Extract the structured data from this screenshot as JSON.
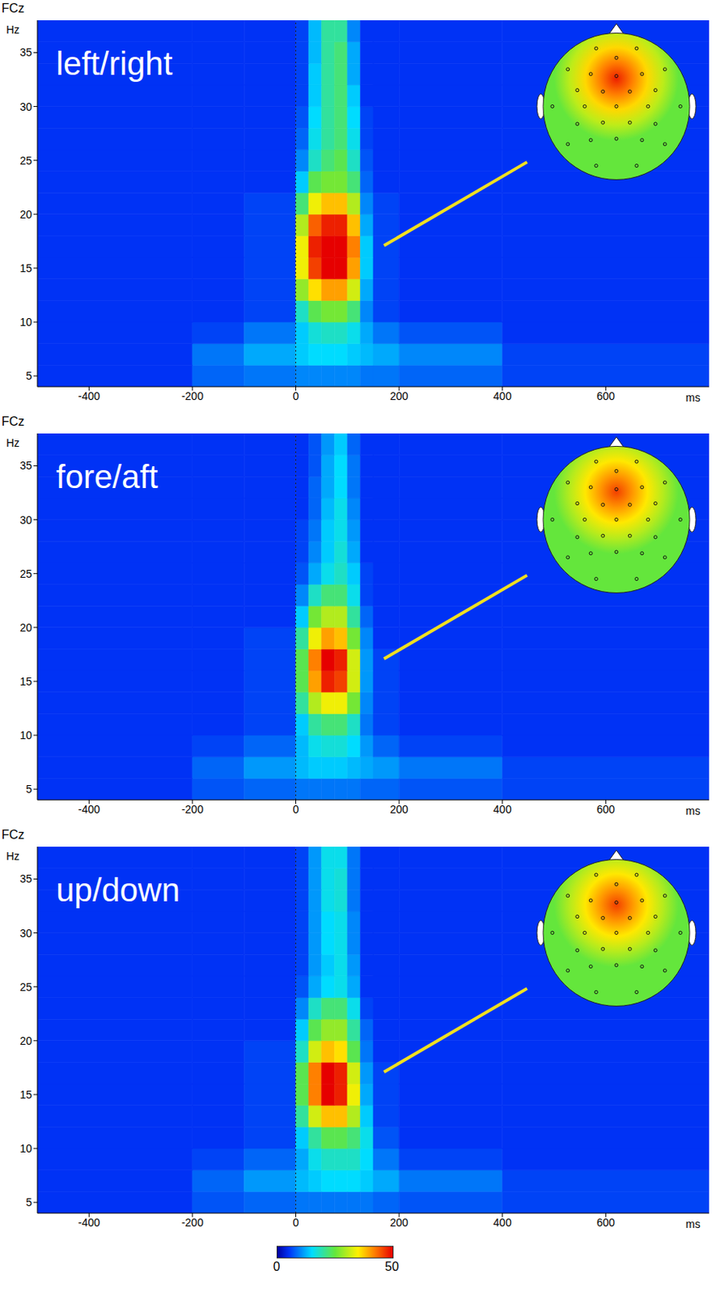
{
  "chart_data": [
    {
      "type": "heatmap",
      "electrode": "FCz",
      "title": "left/right",
      "xlabel": "ms",
      "ylabel": "Hz",
      "xlim": [
        -500,
        800
      ],
      "xticks": [
        -400,
        -200,
        0,
        200,
        400,
        600
      ],
      "ylim": [
        4,
        38
      ],
      "yticks": [
        5,
        10,
        15,
        20,
        25,
        30,
        35
      ],
      "onset": 0,
      "x_edges": [
        -500,
        -200,
        -100,
        0,
        25,
        50,
        75,
        100,
        125,
        150,
        200,
        400,
        800
      ],
      "y_edges": [
        4,
        6,
        8,
        10,
        12,
        14,
        16,
        18,
        20,
        22,
        24,
        26,
        28,
        30,
        32,
        34,
        36,
        38
      ],
      "cells": [
        [
          5,
          8,
          9,
          10,
          10,
          10,
          10,
          10,
          9,
          9,
          8,
          6
        ],
        [
          5,
          9,
          12,
          14,
          15,
          15,
          15,
          14,
          13,
          12,
          10,
          6
        ],
        [
          5,
          6,
          9,
          14,
          17,
          18,
          18,
          16,
          12,
          9,
          7,
          5
        ],
        [
          5,
          5,
          6,
          18,
          24,
          26,
          26,
          22,
          10,
          6,
          5,
          5
        ],
        [
          5,
          5,
          6,
          28,
          36,
          40,
          40,
          32,
          12,
          6,
          5,
          5
        ],
        [
          5,
          5,
          6,
          34,
          46,
          50,
          50,
          40,
          14,
          6,
          5,
          5
        ],
        [
          5,
          5,
          6,
          34,
          48,
          50,
          50,
          42,
          14,
          6,
          5,
          5
        ],
        [
          5,
          5,
          6,
          30,
          44,
          48,
          48,
          38,
          12,
          6,
          5,
          5
        ],
        [
          5,
          5,
          6,
          22,
          34,
          38,
          38,
          30,
          10,
          6,
          5,
          5
        ],
        [
          5,
          5,
          5,
          14,
          24,
          26,
          26,
          22,
          8,
          5,
          5,
          5
        ],
        [
          5,
          5,
          5,
          10,
          18,
          22,
          24,
          18,
          7,
          5,
          5,
          5
        ],
        [
          5,
          5,
          5,
          8,
          16,
          20,
          22,
          16,
          6,
          5,
          5,
          5
        ],
        [
          5,
          5,
          5,
          7,
          15,
          20,
          22,
          15,
          6,
          5,
          5,
          5
        ],
        [
          5,
          5,
          5,
          6,
          14,
          20,
          22,
          14,
          5,
          5,
          5,
          5
        ],
        [
          5,
          5,
          5,
          6,
          14,
          20,
          22,
          12,
          5,
          5,
          5,
          5
        ],
        [
          5,
          5,
          5,
          6,
          13,
          20,
          22,
          12,
          5,
          5,
          5,
          5
        ],
        [
          5,
          5,
          5,
          6,
          13,
          20,
          20,
          10,
          5,
          5,
          5,
          5
        ]
      ],
      "topomap": {
        "peak": 48,
        "surround": 25
      }
    },
    {
      "type": "heatmap",
      "electrode": "FCz",
      "title": "fore/aft",
      "xlabel": "ms",
      "ylabel": "Hz",
      "xlim": [
        -500,
        800
      ],
      "xticks": [
        -400,
        -200,
        0,
        200,
        400,
        600
      ],
      "ylim": [
        4,
        38
      ],
      "yticks": [
        5,
        10,
        15,
        20,
        25,
        30,
        35
      ],
      "onset": 0,
      "x_edges": [
        -500,
        -200,
        -100,
        0,
        25,
        50,
        75,
        100,
        125,
        150,
        200,
        400,
        800
      ],
      "y_edges": [
        4,
        6,
        8,
        10,
        12,
        14,
        16,
        18,
        20,
        22,
        24,
        26,
        28,
        30,
        32,
        34,
        36,
        38
      ],
      "cells": [
        [
          5,
          7,
          8,
          9,
          9,
          9,
          9,
          9,
          8,
          8,
          7,
          6
        ],
        [
          5,
          8,
          11,
          13,
          14,
          14,
          14,
          13,
          12,
          11,
          9,
          6
        ],
        [
          5,
          6,
          8,
          13,
          16,
          17,
          17,
          15,
          11,
          8,
          6,
          5
        ],
        [
          5,
          5,
          6,
          14,
          20,
          22,
          22,
          18,
          9,
          6,
          5,
          5
        ],
        [
          5,
          5,
          6,
          20,
          30,
          34,
          34,
          26,
          10,
          6,
          5,
          5
        ],
        [
          5,
          5,
          6,
          24,
          40,
          48,
          46,
          32,
          11,
          6,
          5,
          5
        ],
        [
          5,
          5,
          6,
          24,
          42,
          50,
          48,
          32,
          11,
          6,
          5,
          5
        ],
        [
          5,
          5,
          6,
          20,
          34,
          40,
          38,
          26,
          10,
          5,
          5,
          5
        ],
        [
          5,
          5,
          5,
          14,
          26,
          30,
          30,
          20,
          8,
          5,
          5,
          5
        ],
        [
          5,
          5,
          5,
          10,
          18,
          22,
          22,
          16,
          6,
          5,
          5,
          5
        ],
        [
          5,
          5,
          5,
          7,
          12,
          16,
          18,
          14,
          6,
          5,
          5,
          5
        ],
        [
          5,
          5,
          5,
          6,
          10,
          14,
          17,
          12,
          5,
          5,
          5,
          5
        ],
        [
          5,
          5,
          5,
          6,
          9,
          14,
          16,
          11,
          5,
          5,
          5,
          5
        ],
        [
          5,
          5,
          5,
          5,
          8,
          13,
          16,
          10,
          5,
          5,
          5,
          5
        ],
        [
          5,
          5,
          5,
          5,
          8,
          12,
          15,
          9,
          5,
          5,
          5,
          5
        ],
        [
          5,
          5,
          5,
          5,
          7,
          12,
          15,
          9,
          5,
          5,
          5,
          5
        ],
        [
          5,
          5,
          5,
          5,
          7,
          11,
          14,
          8,
          5,
          5,
          5,
          5
        ]
      ],
      "topomap": {
        "peak": 46,
        "surround": 25
      }
    },
    {
      "type": "heatmap",
      "electrode": "FCz",
      "title": "up/down",
      "xlabel": "ms",
      "ylabel": "Hz",
      "xlim": [
        -500,
        800
      ],
      "xticks": [
        -400,
        -200,
        0,
        200,
        400,
        600
      ],
      "ylim": [
        4,
        38
      ],
      "yticks": [
        5,
        10,
        15,
        20,
        25,
        30,
        35
      ],
      "onset": 0,
      "x_edges": [
        -500,
        -200,
        -100,
        0,
        25,
        50,
        75,
        100,
        125,
        150,
        200,
        400,
        800
      ],
      "y_edges": [
        4,
        6,
        8,
        10,
        12,
        14,
        16,
        18,
        20,
        22,
        24,
        26,
        28,
        30,
        32,
        34,
        36,
        38
      ],
      "cells": [
        [
          5,
          7,
          8,
          9,
          9,
          9,
          9,
          9,
          9,
          8,
          7,
          6
        ],
        [
          5,
          8,
          11,
          13,
          14,
          15,
          15,
          15,
          14,
          12,
          9,
          6
        ],
        [
          5,
          6,
          8,
          12,
          16,
          18,
          18,
          18,
          15,
          9,
          6,
          5
        ],
        [
          5,
          5,
          6,
          14,
          20,
          24,
          24,
          22,
          16,
          7,
          5,
          5
        ],
        [
          5,
          5,
          6,
          20,
          32,
          38,
          38,
          30,
          14,
          6,
          5,
          5
        ],
        [
          5,
          5,
          6,
          24,
          42,
          50,
          48,
          34,
          12,
          6,
          5,
          5
        ],
        [
          5,
          5,
          6,
          24,
          42,
          50,
          48,
          32,
          11,
          6,
          5,
          5
        ],
        [
          5,
          5,
          6,
          18,
          32,
          38,
          36,
          24,
          9,
          5,
          5,
          5
        ],
        [
          5,
          5,
          5,
          14,
          24,
          28,
          28,
          20,
          8,
          5,
          5,
          5
        ],
        [
          5,
          5,
          5,
          10,
          18,
          22,
          22,
          16,
          6,
          5,
          5,
          5
        ],
        [
          5,
          5,
          5,
          7,
          12,
          15,
          16,
          12,
          5,
          5,
          5,
          5
        ],
        [
          5,
          5,
          5,
          6,
          11,
          14,
          16,
          11,
          5,
          5,
          5,
          5
        ],
        [
          5,
          5,
          5,
          6,
          11,
          15,
          16,
          10,
          5,
          5,
          5,
          5
        ],
        [
          5,
          5,
          5,
          6,
          11,
          15,
          16,
          10,
          5,
          5,
          5,
          5
        ],
        [
          5,
          5,
          5,
          6,
          11,
          16,
          17,
          9,
          5,
          5,
          5,
          5
        ],
        [
          5,
          5,
          5,
          6,
          11,
          16,
          17,
          9,
          5,
          5,
          5,
          5
        ],
        [
          5,
          5,
          5,
          6,
          11,
          16,
          16,
          9,
          5,
          5,
          5,
          5
        ]
      ],
      "topomap": {
        "peak": 46,
        "surround": 25
      }
    }
  ],
  "colorbar": {
    "range": [
      0,
      50
    ],
    "ticks": [
      0,
      50
    ]
  }
}
